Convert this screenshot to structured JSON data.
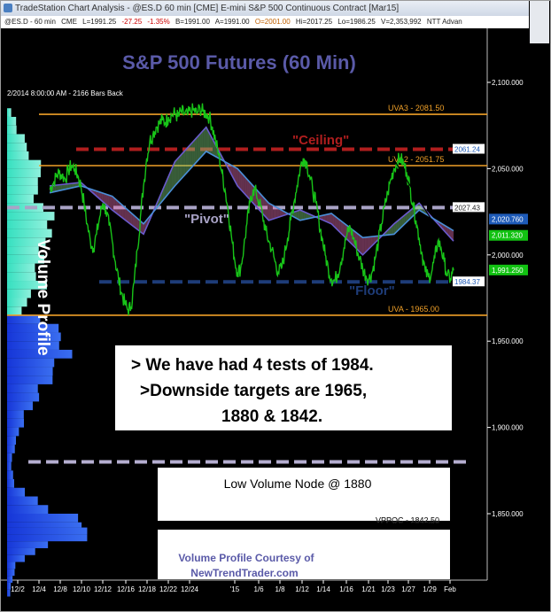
{
  "window": {
    "title": "TradeStation Chart Analysis - @ES.D 60 min [CME] E-mini S&P 500 Continuous Contract [Mar15]",
    "info": {
      "symbol": "@ES.D - 60 min",
      "exchange": "CME",
      "last": "L=1991.25",
      "change": "-27.25",
      "pct": "-1.35%",
      "bid": "B=1991.00",
      "ask": "A=1991.00",
      "open": "O=2001.00",
      "high": "Hi=2017.25",
      "low": "Lo=1986.25",
      "volume": "V=2,353,992",
      "extra": "NTT Advan"
    }
  },
  "chart_data": {
    "type": "line",
    "title": "S&P 500 Futures (60 Min)",
    "subtitle": "2/2014 8:00:00 AM - 2166 Bars Back",
    "ylim": [
      1798,
      2124
    ],
    "grid": false,
    "y_ticks": [
      {
        "value": 2100,
        "label": "2,100.000"
      },
      {
        "value": 2050,
        "label": "2,050.000"
      },
      {
        "value": 2000,
        "label": "2,000.000"
      },
      {
        "value": 1950,
        "label": "1,950.000"
      },
      {
        "value": 1900,
        "label": "1,900.000"
      },
      {
        "value": 1850,
        "label": "1,850.000"
      }
    ],
    "x_ticks": [
      "12/2",
      "12/4",
      "12/8",
      "12/10",
      "12/12",
      "12/16",
      "12/18",
      "12/22",
      "12/24",
      "'15",
      "1/6",
      "1/8",
      "1/12",
      "1/14",
      "1/16",
      "1/21",
      "1/23",
      "1/27",
      "1/29",
      "Feb"
    ],
    "price_series": {
      "name": "@ES.D 60 min",
      "points": [
        [
          0,
          2038
        ],
        [
          1,
          2041
        ],
        [
          2,
          2045
        ],
        [
          3,
          2048
        ],
        [
          4,
          2046
        ],
        [
          5,
          2044
        ],
        [
          6,
          2049
        ],
        [
          7,
          2052
        ],
        [
          8,
          2050
        ],
        [
          9,
          2046
        ],
        [
          10,
          2040
        ],
        [
          11,
          2030
        ],
        [
          12,
          2018
        ],
        [
          13,
          2008
        ],
        [
          14,
          2004
        ],
        [
          15,
          2012
        ],
        [
          16,
          2022
        ],
        [
          17,
          2030
        ],
        [
          18,
          2026
        ],
        [
          19,
          2017
        ],
        [
          20,
          2008
        ],
        [
          21,
          1996
        ],
        [
          22,
          1986
        ],
        [
          23,
          1978
        ],
        [
          24,
          1972
        ],
        [
          25,
          1968
        ],
        [
          26,
          1970
        ],
        [
          27,
          1984
        ],
        [
          28,
          2003
        ],
        [
          29,
          2022
        ],
        [
          30,
          2040
        ],
        [
          31,
          2056
        ],
        [
          32,
          2066
        ],
        [
          33,
          2070
        ],
        [
          34,
          2074
        ],
        [
          35,
          2076
        ],
        [
          36,
          2078
        ],
        [
          37,
          2077
        ],
        [
          38,
          2080
        ],
        [
          39,
          2081
        ],
        [
          40,
          2082
        ],
        [
          41,
          2080
        ],
        [
          42,
          2083
        ],
        [
          43,
          2082
        ],
        [
          44,
          2081
        ],
        [
          45,
          2083
        ],
        [
          46,
          2084
        ],
        [
          47,
          2082
        ],
        [
          48,
          2085
        ],
        [
          49,
          2083
        ],
        [
          50,
          2082
        ],
        [
          51,
          2080
        ],
        [
          52,
          2074
        ],
        [
          53,
          2066
        ],
        [
          54,
          2058
        ],
        [
          55,
          2048
        ],
        [
          56,
          2038
        ],
        [
          57,
          2026
        ],
        [
          58,
          2012
        ],
        [
          59,
          1998
        ],
        [
          60,
          1990
        ],
        [
          61,
          1992
        ],
        [
          62,
          2004
        ],
        [
          63,
          2018
        ],
        [
          64,
          2030
        ],
        [
          65,
          2038
        ],
        [
          66,
          2036
        ],
        [
          67,
          2030
        ],
        [
          68,
          2023
        ],
        [
          69,
          2014
        ],
        [
          70,
          2008
        ],
        [
          71,
          2003
        ],
        [
          72,
          1996
        ],
        [
          73,
          1990
        ],
        [
          74,
          1992
        ],
        [
          75,
          2000
        ],
        [
          76,
          2010
        ],
        [
          77,
          2020
        ],
        [
          78,
          2030
        ],
        [
          79,
          2040
        ],
        [
          80,
          2050
        ],
        [
          81,
          2056
        ],
        [
          82,
          2054
        ],
        [
          83,
          2046
        ],
        [
          84,
          2038
        ],
        [
          85,
          2030
        ],
        [
          86,
          2020
        ],
        [
          87,
          2010
        ],
        [
          88,
          2000
        ],
        [
          89,
          1992
        ],
        [
          90,
          1986
        ],
        [
          91,
          1985
        ],
        [
          92,
          1989
        ],
        [
          93,
          1996
        ],
        [
          94,
          2004
        ],
        [
          95,
          2012
        ],
        [
          96,
          2016
        ],
        [
          97,
          2010
        ],
        [
          98,
          2004
        ],
        [
          99,
          1998
        ],
        [
          100,
          1992
        ],
        [
          101,
          1988
        ],
        [
          102,
          1986
        ],
        [
          103,
          1990
        ],
        [
          104,
          1998
        ],
        [
          105,
          2008
        ],
        [
          106,
          2018
        ],
        [
          107,
          2028
        ],
        [
          108,
          2036
        ],
        [
          109,
          2044
        ],
        [
          110,
          2050
        ],
        [
          111,
          2054
        ],
        [
          112,
          2056
        ],
        [
          113,
          2053
        ],
        [
          114,
          2048
        ],
        [
          115,
          2040
        ],
        [
          116,
          2030
        ],
        [
          117,
          2020
        ],
        [
          118,
          2010
        ],
        [
          119,
          2000
        ],
        [
          120,
          1990
        ],
        [
          121,
          1987
        ],
        [
          122,
          1990
        ],
        [
          123,
          1998
        ],
        [
          124,
          2008
        ],
        [
          125,
          2004
        ],
        [
          126,
          1996
        ],
        [
          127,
          1988
        ],
        [
          128,
          1986
        ],
        [
          129,
          1991
        ]
      ]
    },
    "ma_fast": [
      [
        0,
        2040
      ],
      [
        10,
        2042
      ],
      [
        20,
        2026
      ],
      [
        30,
        2012
      ],
      [
        40,
        2054
      ],
      [
        50,
        2074
      ],
      [
        60,
        2040
      ],
      [
        70,
        2020
      ],
      [
        80,
        2026
      ],
      [
        90,
        2018
      ],
      [
        100,
        2000
      ],
      [
        110,
        2018
      ],
      [
        118,
        2030
      ],
      [
        129,
        2008
      ]
    ],
    "ma_slow": [
      [
        0,
        2036
      ],
      [
        10,
        2040
      ],
      [
        20,
        2034
      ],
      [
        30,
        2018
      ],
      [
        40,
        2040
      ],
      [
        50,
        2060
      ],
      [
        60,
        2050
      ],
      [
        70,
        2030
      ],
      [
        80,
        2020
      ],
      [
        90,
        2024
      ],
      [
        100,
        2010
      ],
      [
        110,
        2012
      ],
      [
        118,
        2026
      ],
      [
        129,
        2014
      ]
    ],
    "trendline": [
      [
        109,
        2058
      ],
      [
        129,
        2000
      ]
    ],
    "levels": [
      {
        "name": "UVA3 - 2081.50",
        "value": 2081.5,
        "color": "#f0a028",
        "style": "solid",
        "label_side": "right-inner"
      },
      {
        "name": "\"Ceiling\"",
        "value": 2061.24,
        "color": "#b01e1e",
        "style": "dash-heavy",
        "axis_label": "2061.24",
        "axis_text_color": "#1e5bb8",
        "axis_box": "#ffffff"
      },
      {
        "name": "UVA2 - 2051.75",
        "value": 2051.75,
        "color": "#f0a028",
        "style": "solid",
        "label_side": "right-inner"
      },
      {
        "name": "\"Pivot\"",
        "value": 2027.43,
        "color": "#a9a3c6",
        "style": "dash-heavy",
        "axis_label": "2027.43",
        "axis_text_color": "#1e1e1e",
        "axis_box": "#ffffff"
      },
      {
        "name": "\"Floor\"",
        "value": 1984.37,
        "color": "#1e3c78",
        "style": "dash-heavy",
        "axis_label": "1984.37",
        "axis_text_color": "#1e5bb8",
        "axis_box": "#ffffff"
      },
      {
        "name": "UVA - 1965.00",
        "value": 1965.0,
        "color": "#f0a028",
        "style": "solid",
        "label_side": "right-inner"
      },
      {
        "name": "Low Volume Node @ 1880",
        "value": 1880.0,
        "color": "#b5aed0",
        "style": "dash-heavy"
      },
      {
        "name": "VPPOC - 1842.50",
        "value": 1842.5,
        "color": "#000000",
        "style": "solid",
        "label_side": "right-inner"
      }
    ],
    "price_badges": [
      {
        "label": "2,020.760",
        "value": 2020.76,
        "bg": "#1e5bb8",
        "fg": "#ffffff"
      },
      {
        "label": "2,011.320",
        "value": 2011.32,
        "bg": "#12c212",
        "fg": "#ffffff"
      },
      {
        "label": "1,991.250",
        "value": 1991.25,
        "bg": "#12c212",
        "fg": "#ffffff"
      }
    ],
    "annotations": [
      "\"Ceiling\"",
      "\"Pivot\"",
      "\"Floor\"",
      "> We have had 4 tests of 1984.",
      ">Downside targets are 1965,",
      "1880 & 1842.",
      "Low Volume Node @ 1880",
      "Volume Profile Courtesy of",
      "NewTrendTrader.com"
    ],
    "volume_profile": {
      "label": "Volume Profile",
      "upper_color": "#36e0c0",
      "lower_color": "#1e46e8",
      "split_value": 1965,
      "bins": [
        [
          2085,
          0.03
        ],
        [
          2080,
          0.06
        ],
        [
          2075,
          0.08
        ],
        [
          2070,
          0.12
        ],
        [
          2065,
          0.14
        ],
        [
          2060,
          0.18
        ],
        [
          2055,
          0.22
        ],
        [
          2050,
          0.26
        ],
        [
          2045,
          0.24
        ],
        [
          2040,
          0.2
        ],
        [
          2035,
          0.22
        ],
        [
          2030,
          0.26
        ],
        [
          2025,
          0.32
        ],
        [
          2020,
          0.34
        ],
        [
          2015,
          0.3
        ],
        [
          2010,
          0.28
        ],
        [
          2005,
          0.26
        ],
        [
          2000,
          0.24
        ],
        [
          1995,
          0.22
        ],
        [
          1990,
          0.22
        ],
        [
          1985,
          0.26
        ],
        [
          1980,
          0.2
        ],
        [
          1975,
          0.14
        ],
        [
          1970,
          0.1
        ],
        [
          1965,
          0.28
        ],
        [
          1960,
          0.34
        ],
        [
          1955,
          0.4
        ],
        [
          1950,
          0.42
        ],
        [
          1945,
          0.42
        ],
        [
          1940,
          0.38
        ],
        [
          1935,
          0.34
        ],
        [
          1930,
          0.3
        ],
        [
          1925,
          0.26
        ],
        [
          1920,
          0.22
        ],
        [
          1915,
          0.18
        ],
        [
          1910,
          0.14
        ],
        [
          1905,
          0.11
        ],
        [
          1900,
          0.09
        ],
        [
          1895,
          0.07
        ],
        [
          1890,
          0.05
        ],
        [
          1885,
          0.04
        ],
        [
          1880,
          0.03
        ],
        [
          1875,
          0.04
        ],
        [
          1870,
          0.06
        ],
        [
          1865,
          0.12
        ],
        [
          1860,
          0.22
        ],
        [
          1855,
          0.34
        ],
        [
          1850,
          0.46
        ],
        [
          1845,
          0.58
        ],
        [
          1842,
          0.62
        ],
        [
          1838,
          0.52
        ],
        [
          1834,
          0.34
        ],
        [
          1830,
          0.2
        ],
        [
          1826,
          0.12
        ],
        [
          1822,
          0.07
        ],
        [
          1818,
          0.05
        ],
        [
          1814,
          0.04
        ],
        [
          1810,
          0.03
        ],
        [
          1806,
          0.02
        ]
      ]
    }
  },
  "colors": {
    "background": "#000000",
    "axis_text": "#ffffff",
    "title": "#5a5aa8",
    "price": "#18c418",
    "ma_fast": "#6a5acd",
    "ma_slow": "#4a8fd8",
    "cloud_up": "#7fd07f",
    "cloud_down": "#e06fb0"
  }
}
